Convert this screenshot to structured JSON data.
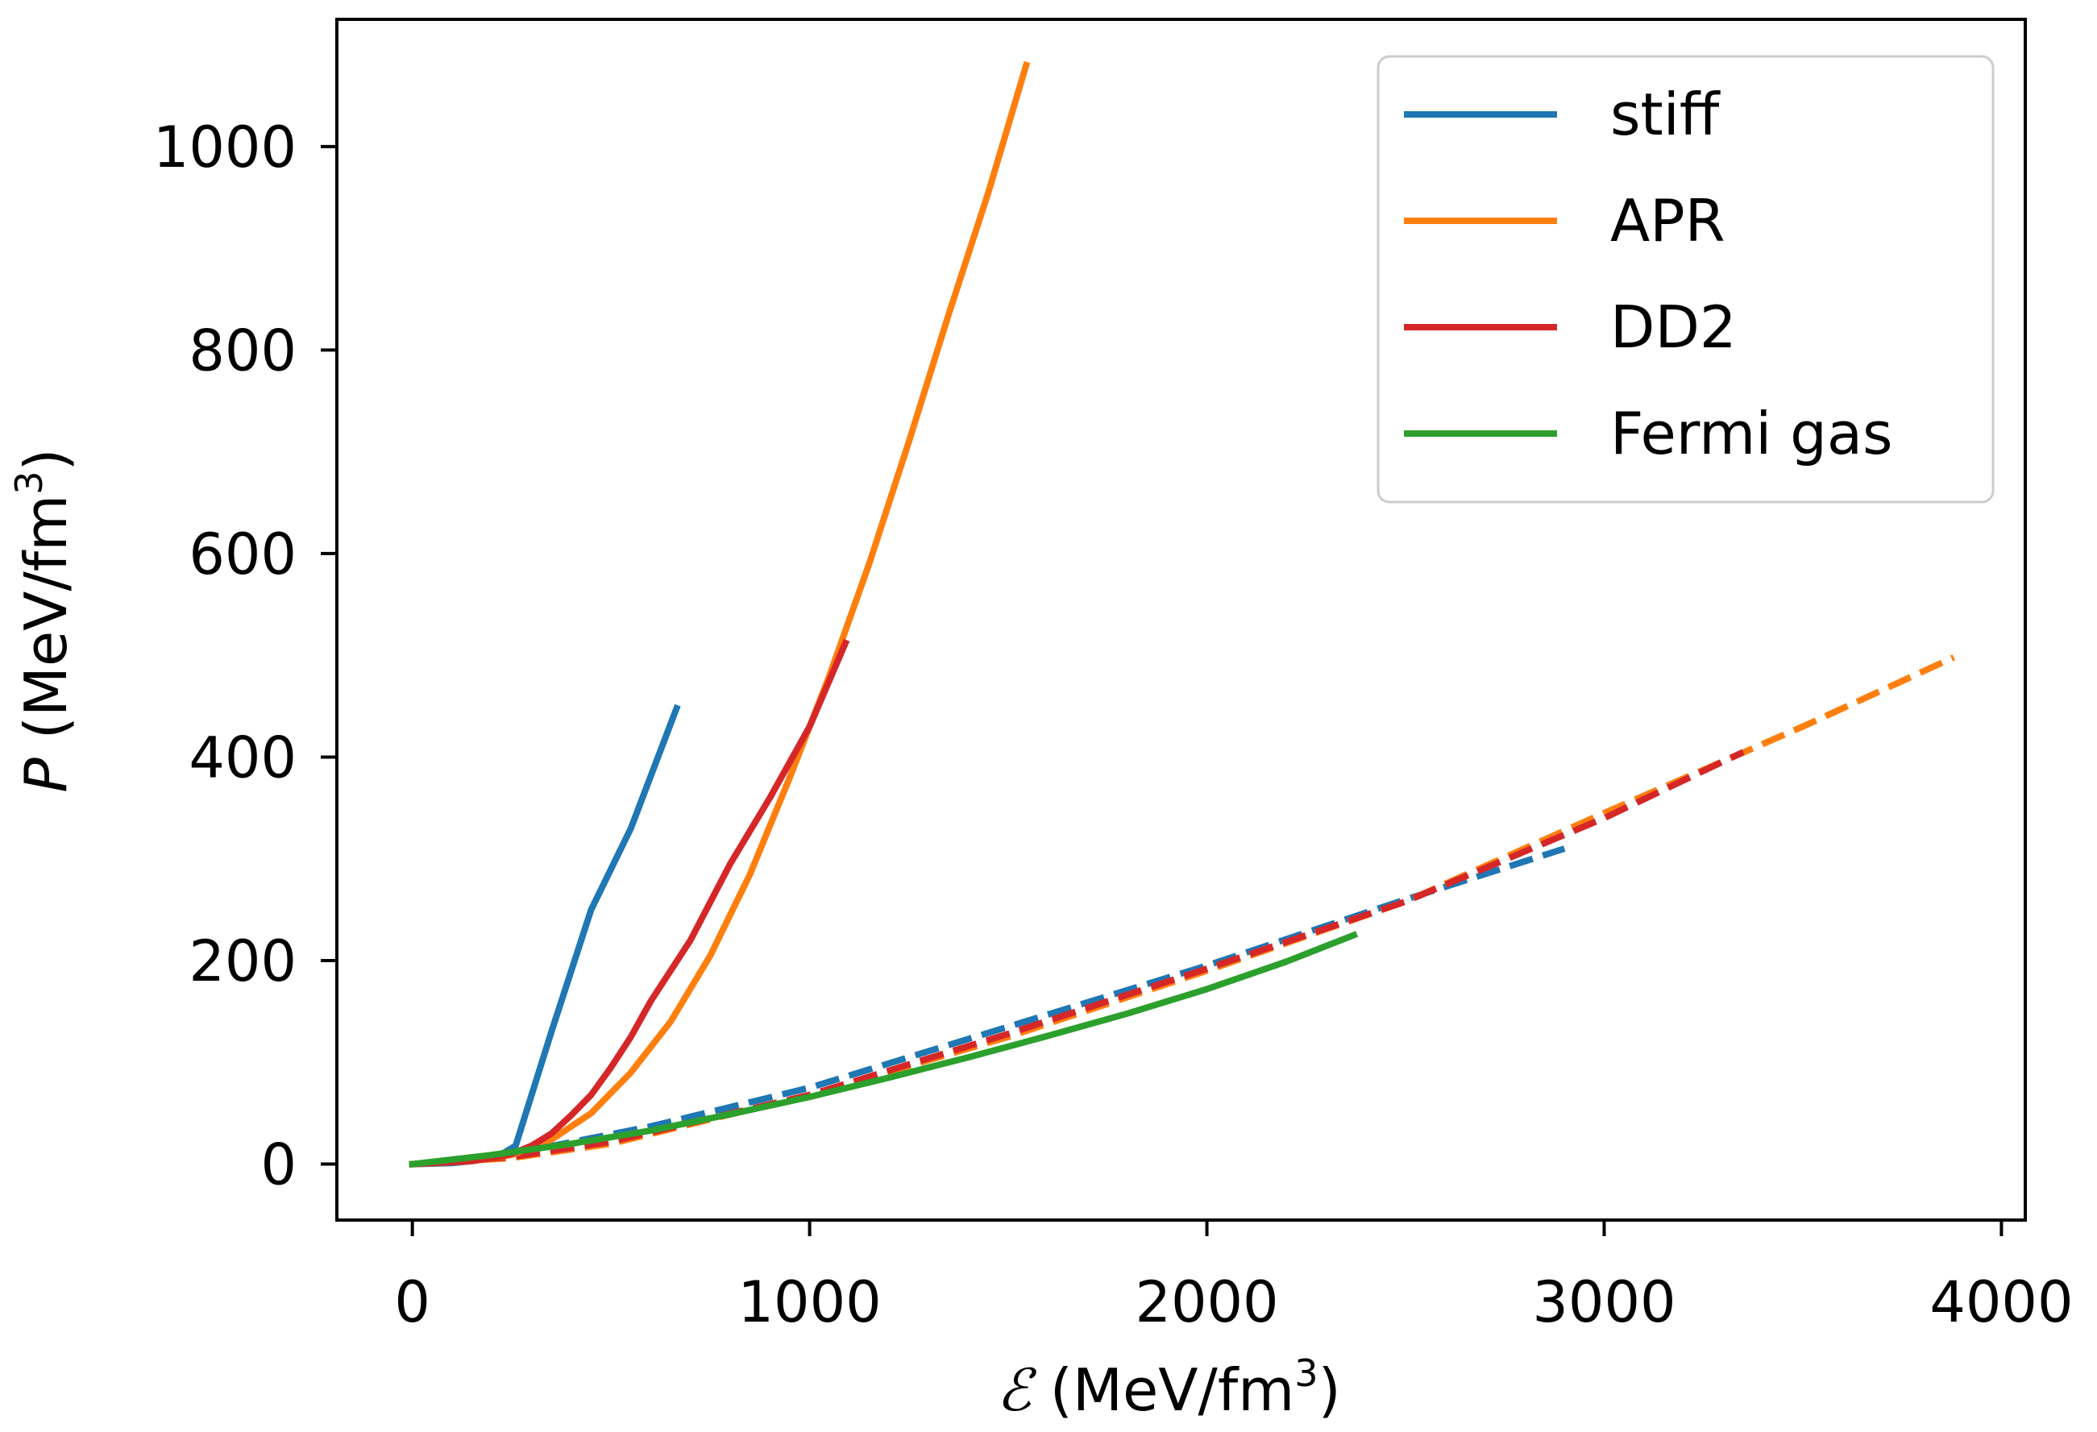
{
  "chart_data": {
    "type": "line",
    "title": "",
    "xlabel": {
      "symbol": "ℰ",
      "unit_prefix": " (MeV/fm",
      "exponent": "3",
      "unit_suffix": ")"
    },
    "ylabel": {
      "symbol": "P",
      "unit_prefix": " (MeV/fm",
      "exponent": "3",
      "unit_suffix": ")"
    },
    "xlim": [
      -190,
      4060
    ],
    "ylim": [
      -55,
      1125
    ],
    "xticks": [
      0,
      1000,
      2000,
      3000,
      4000
    ],
    "yticks": [
      0,
      200,
      400,
      600,
      800,
      1000
    ],
    "xtick_labels": [
      "0",
      "1000",
      "2000",
      "3000",
      "4000"
    ],
    "ytick_labels": [
      "0",
      "200",
      "400",
      "600",
      "800",
      "1000"
    ],
    "legend": {
      "placement": "top-right",
      "entries": [
        "stiff",
        "APR",
        "DD2",
        "Fermi gas"
      ]
    },
    "grid": false,
    "series": [
      {
        "name": "stiff",
        "color": "#1f77b4",
        "style": "solid",
        "x": [
          0,
          100,
          150,
          200,
          230,
          260,
          350,
          450,
          550,
          665
        ],
        "y": [
          0,
          1,
          3,
          7,
          11,
          18,
          130,
          250,
          330,
          448
        ]
      },
      {
        "name": "APR",
        "color": "#ff7f0e",
        "style": "solid",
        "x": [
          0,
          150,
          250,
          350,
          450,
          550,
          650,
          750,
          850,
          950,
          1050,
          1150,
          1250,
          1350,
          1450,
          1545
        ],
        "y": [
          0,
          3,
          9,
          24,
          50,
          90,
          140,
          205,
          285,
          380,
          480,
          590,
          710,
          835,
          955,
          1080
        ]
      },
      {
        "name": "DD2",
        "color": "#d62728",
        "style": "solid",
        "x": [
          0,
          150,
          200,
          250,
          300,
          350,
          400,
          450,
          500,
          550,
          600,
          700,
          800,
          900,
          1000,
          1090
        ],
        "y": [
          0,
          3,
          6,
          10,
          18,
          30,
          48,
          68,
          95,
          125,
          160,
          220,
          295,
          360,
          430,
          512
        ]
      },
      {
        "name": "Fermi gas",
        "color": "#2ca02c",
        "style": "solid",
        "x": [
          0,
          200,
          400,
          600,
          800,
          1000,
          1200,
          1400,
          1600,
          1800,
          2000,
          2200,
          2370
        ],
        "y": [
          0,
          9,
          20,
          33,
          49,
          66,
          85,
          105,
          126,
          148,
          172,
          199,
          225
        ]
      },
      {
        "name": "stiff (dashed)",
        "color": "#1f77b4",
        "style": "dashed",
        "x": [
          250,
          600,
          1000,
          1500,
          2000,
          2500,
          2900
        ],
        "y": [
          10,
          37,
          75,
          135,
          195,
          260,
          310
        ]
      },
      {
        "name": "APR (dashed)",
        "color": "#ff7f0e",
        "style": "dashed",
        "x": [
          0,
          250,
          500,
          1000,
          1500,
          2000,
          2500,
          3000,
          3500,
          3880
        ],
        "y": [
          0,
          6,
          20,
          68,
          125,
          190,
          258,
          345,
          430,
          498
        ]
      },
      {
        "name": "DD2 (dashed)",
        "color": "#d62728",
        "style": "dashed",
        "x": [
          0,
          250,
          500,
          1000,
          1500,
          2000,
          2500,
          3000,
          3350
        ],
        "y": [
          0,
          7,
          22,
          68,
          128,
          192,
          258,
          340,
          405
        ]
      }
    ]
  }
}
